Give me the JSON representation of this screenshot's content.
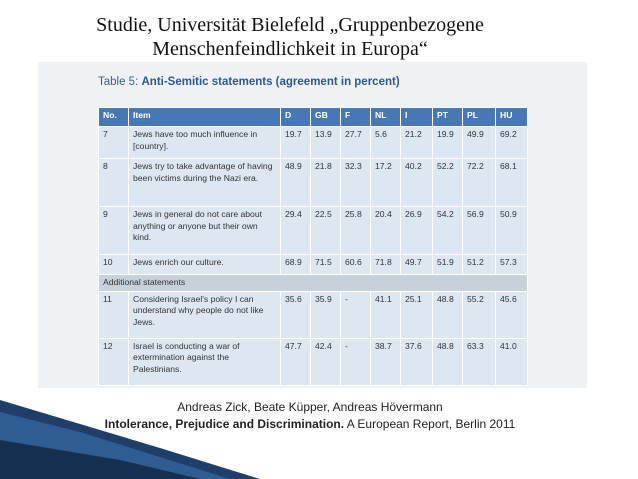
{
  "header": {
    "title_lines": [
      "Studie, Universität Bielefeld „Gruppenbezogene",
      "Menschenfeindlichkeit in Europa“"
    ]
  },
  "table": {
    "caption_label": "Table 5:",
    "caption": "Anti-Semitic statements (agreement in percent)",
    "columns": [
      "No.",
      "Item",
      "D",
      "GB",
      "F",
      "NL",
      "I",
      "PT",
      "PL",
      "HU"
    ],
    "rows": [
      [
        "7",
        "Jews have too much influence in [country].",
        "19.7",
        "13.9",
        "27.7",
        "5.6",
        "21.2",
        "19.9",
        "49.9",
        "69.2"
      ],
      [
        "8",
        "Jews try to take advantage of having been victims during the Nazi era.",
        "48.9",
        "21.8",
        "32.3",
        "17.2",
        "40.2",
        "52.2",
        "72.2",
        "68.1"
      ],
      [
        "9",
        "Jews in general do not care about anything or anyone but their own kind.",
        "29.4",
        "22.5",
        "25.8",
        "20.4",
        "26.9",
        "54.2",
        "56.9",
        "50.9"
      ],
      [
        "10",
        "Jews enrich our culture.",
        "68.9",
        "71.5",
        "60.6",
        "71.8",
        "49.7",
        "51.9",
        "51.2",
        "57.3"
      ]
    ],
    "section": "Additional statements",
    "additional_rows": [
      [
        "11",
        "Considering Israel's policy I can understand why people do not like Jews.",
        "35.6",
        "35.9",
        "-",
        "41.1",
        "25.1",
        "48.8",
        "55.2",
        "45.6"
      ],
      [
        "12",
        "Israel is conducting a war of extermination against the Palestinians.",
        "47.7",
        "42.4",
        "-",
        "38.7",
        "37.6",
        "48.8",
        "63.3",
        "41.0"
      ]
    ]
  },
  "citation": {
    "authors": "Andreas Zick, Beate Küpper, Andreas Hövermann",
    "title": "Intolerance, Prejudice and Discrimination.",
    "rest": "A European Report, Berlin 2011"
  }
}
